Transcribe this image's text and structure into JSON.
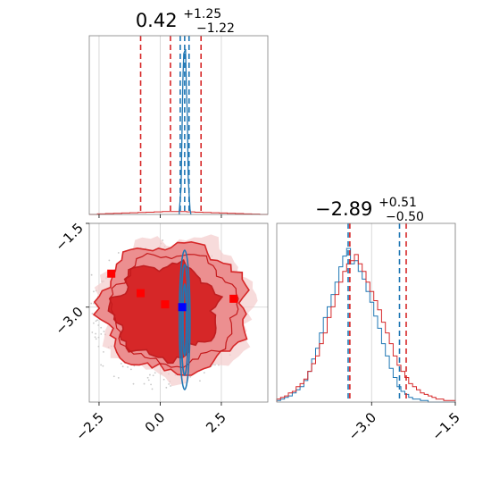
{
  "chart_data": {
    "type": "corner",
    "params": [
      {
        "title_value": "0.42",
        "title_plus": "+1.25",
        "title_minus": "−1.22",
        "range": [
          -2.9,
          4.4
        ],
        "ticks": [
          -2.5,
          0.0,
          2.5
        ],
        "tick_labels": [
          "−2.5",
          "0.0",
          "2.5"
        ],
        "quantiles_red": [
          -0.8,
          0.42,
          1.67
        ],
        "quantiles_blue": [
          0.82,
          1.0,
          1.18
        ]
      },
      {
        "title_value": "−2.89",
        "title_plus": "+0.51",
        "title_minus": "−0.50",
        "range": [
          -4.7,
          -1.5
        ],
        "ticks": [
          -3.0,
          -1.5
        ],
        "tick_labels": [
          "−3.0",
          "−1.5"
        ],
        "quantiles_red": [
          -3.39,
          -2.89,
          -2.38
        ],
        "quantiles_blue": [
          -3.42,
          -2.92,
          -2.5
        ]
      }
    ],
    "y_ticks_2d": [
      -1.5,
      -3.0
    ],
    "y_tick_labels_2d": [
      "−1.5",
      "−3.0"
    ],
    "series": [
      {
        "name": "",
        "color": "#d62728"
      },
      {
        "name": "",
        "color": "#1f77b4"
      }
    ],
    "hist_x_red": [
      0.0,
      0.02,
      0.03,
      0.04,
      0.05,
      0.06,
      0.07,
      0.08,
      0.09,
      0.1,
      0.1,
      0.1,
      0.09,
      0.08,
      0.07,
      0.06,
      0.05,
      0.04,
      0.03,
      0.02,
      0.01,
      0.0
    ],
    "hist_x_blue_peak": 1.0,
    "hist_y_red": [
      0.02,
      0.03,
      0.04,
      0.06,
      0.07,
      0.1,
      0.12,
      0.15,
      0.2,
      0.25,
      0.3,
      0.38,
      0.45,
      0.55,
      0.62,
      0.7,
      0.78,
      0.85,
      0.9,
      0.92,
      0.96,
      0.9,
      0.85,
      0.78,
      0.72,
      0.66,
      0.6,
      0.52,
      0.45,
      0.38,
      0.3,
      0.24,
      0.2,
      0.16,
      0.12,
      0.1,
      0.08,
      0.06,
      0.05,
      0.04,
      0.03,
      0.02,
      0.02,
      0.01,
      0.01,
      0.01
    ],
    "hist_y_blue": [
      0.01,
      0.02,
      0.03,
      0.04,
      0.06,
      0.08,
      0.1,
      0.14,
      0.2,
      0.28,
      0.35,
      0.45,
      0.55,
      0.62,
      0.7,
      0.78,
      0.88,
      0.95,
      1.0,
      0.9,
      0.92,
      0.85,
      0.8,
      0.72,
      0.65,
      0.56,
      0.48,
      0.38,
      0.3,
      0.22,
      0.16,
      0.1,
      0.07,
      0.05,
      0.03,
      0.02,
      0.02,
      0.01,
      0.01,
      0.0,
      0.0,
      0.0,
      0.0,
      0.0,
      0.0,
      0.0
    ],
    "markers_red": [
      [
        -2.0,
        -2.4
      ],
      [
        -0.8,
        -2.75
      ],
      [
        0.2,
        -2.95
      ],
      [
        3.0,
        -2.85
      ]
    ],
    "marker_blue": [
      0.9,
      -3.0
    ]
  }
}
